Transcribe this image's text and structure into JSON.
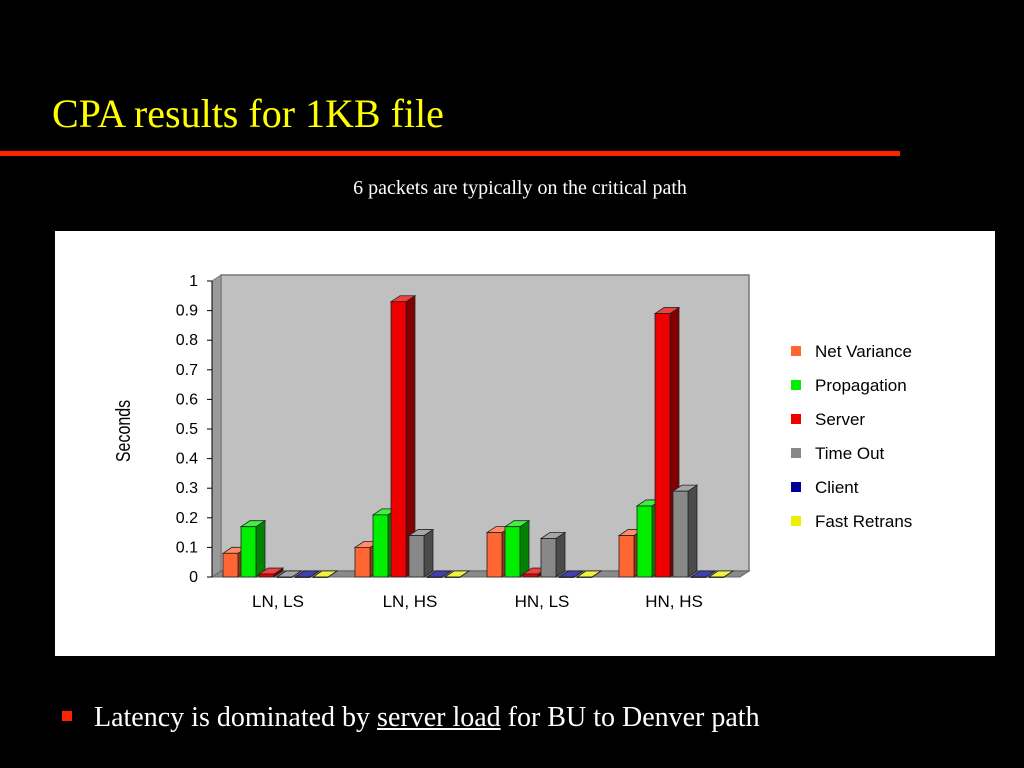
{
  "slide": {
    "title": "CPA results for 1KB file",
    "subtitle": "6 packets are typically on the critical path",
    "bullet": {
      "before": "Latency is dominated by ",
      "underlined": "server load",
      "after": " for BU to Denver path"
    },
    "colors": {
      "background": "#000000",
      "title": "#ffff00",
      "rule": "#ff2200",
      "text": "#ffffff",
      "bullet_marker": "#ff2200"
    }
  },
  "chart_data": {
    "type": "bar",
    "style": "3d-clustered",
    "title": "",
    "xlabel": "",
    "ylabel": "Seconds",
    "ylim": [
      0,
      1
    ],
    "yticks": [
      "0",
      "0.1",
      "0.2",
      "0.3",
      "0.4",
      "0.5",
      "0.6",
      "0.7",
      "0.8",
      "0.9",
      "1"
    ],
    "categories": [
      "LN, LS",
      "LN, HS",
      "HN, LS",
      "HN, HS"
    ],
    "series": [
      {
        "name": "Net Variance",
        "color": "#ff6633",
        "values": [
          0.08,
          0.1,
          0.15,
          0.14
        ]
      },
      {
        "name": "Propagation",
        "color": "#00ee00",
        "values": [
          0.17,
          0.21,
          0.17,
          0.24
        ]
      },
      {
        "name": "Server",
        "color": "#ee0000",
        "values": [
          0.01,
          0.93,
          0.01,
          0.89
        ]
      },
      {
        "name": "Time Out",
        "color": "#888888",
        "values": [
          0.0,
          0.14,
          0.13,
          0.29
        ]
      },
      {
        "name": "Client",
        "color": "#000099",
        "values": [
          0.0,
          0.0,
          0.0,
          0.0
        ]
      },
      {
        "name": "Fast Retrans",
        "color": "#eeee00",
        "values": [
          0.0,
          0.0,
          0.0,
          0.0
        ]
      }
    ],
    "grid": false,
    "plot_background": "#c0c0c0",
    "legend_position": "right"
  }
}
